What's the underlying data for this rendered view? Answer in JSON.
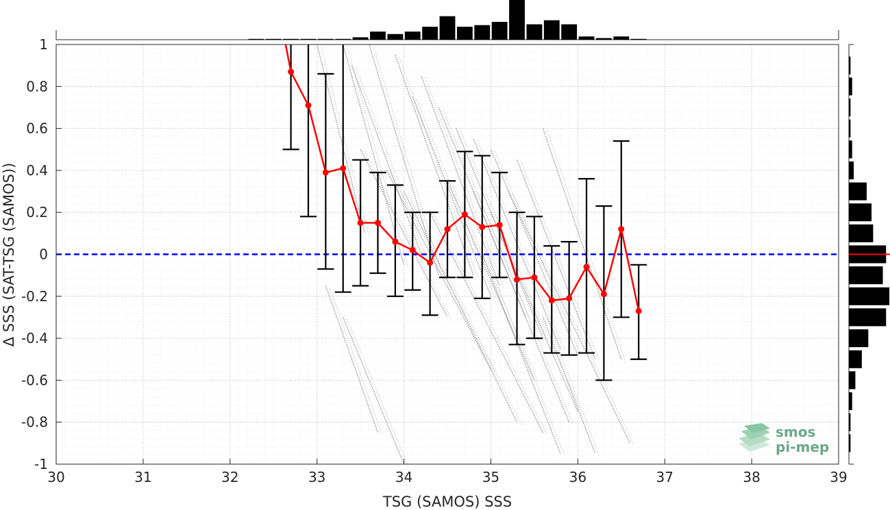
{
  "chart_data": {
    "type": "scatter",
    "xlabel": "TSG (SAMOS) SSS",
    "ylabel": "Δ SSS (SAT-TSG (SAMOS))",
    "xlim": [
      30,
      39
    ],
    "ylim": [
      -1,
      1
    ],
    "xticks": [
      "30",
      "31",
      "32",
      "33",
      "34",
      "35",
      "36",
      "37",
      "38",
      "39"
    ],
    "yticks": [
      "1",
      "0.8",
      "0.6",
      "0.4",
      "0.2",
      "0",
      "-0.2",
      "-0.4",
      "-0.6",
      "-0.8",
      "-1"
    ],
    "grid": true,
    "minor_grid": true,
    "zero_line": {
      "y": 0,
      "style": "dashed",
      "color": "#0000ff"
    },
    "binned_mean": {
      "color": "#ff0000",
      "x": [
        32.5,
        32.7,
        32.9,
        33.1,
        33.3,
        33.5,
        33.7,
        33.9,
        34.1,
        34.3,
        34.5,
        34.7,
        34.9,
        35.1,
        35.3,
        35.5,
        35.7,
        35.9,
        36.1,
        36.3,
        36.5,
        36.7
      ],
      "mean": [
        1.3,
        0.87,
        0.71,
        0.39,
        0.41,
        0.15,
        0.15,
        0.06,
        0.02,
        -0.04,
        0.12,
        0.19,
        0.13,
        0.14,
        -0.12,
        -0.11,
        -0.22,
        -0.21,
        -0.06,
        -0.19,
        0.12,
        -0.27
      ],
      "err_low": [
        null,
        0.5,
        0.18,
        -0.07,
        -0.18,
        -0.15,
        -0.09,
        -0.2,
        -0.17,
        -0.29,
        -0.11,
        -0.11,
        -0.21,
        -0.11,
        -0.43,
        -0.4,
        -0.47,
        -0.48,
        -0.47,
        -0.6,
        -0.3,
        -0.5
      ],
      "err_high": [
        null,
        1.0,
        1.0,
        0.86,
        1.0,
        0.45,
        0.39,
        0.33,
        0.2,
        0.2,
        0.35,
        0.49,
        0.47,
        0.39,
        0.2,
        0.18,
        0.04,
        0.06,
        0.36,
        0.23,
        0.54,
        -0.05
      ]
    },
    "scatter_color": "#8c8c8c",
    "scatter_streaks": [
      {
        "x": 33.0,
        "y": 1.0,
        "x2": 33.55,
        "y2": 0.1
      },
      {
        "x": 33.3,
        "y": 1.0,
        "x2": 34.0,
        "y2": -0.05
      },
      {
        "x": 33.6,
        "y": 1.0,
        "x2": 34.4,
        "y2": -0.1
      },
      {
        "x": 33.9,
        "y": 0.95,
        "x2": 34.8,
        "y2": -0.1
      },
      {
        "x": 34.2,
        "y": 0.85,
        "x2": 35.1,
        "y2": -0.15
      },
      {
        "x": 34.4,
        "y": 0.7,
        "x2": 35.4,
        "y2": -0.3
      },
      {
        "x": 34.6,
        "y": 0.6,
        "x2": 35.6,
        "y2": -0.4
      },
      {
        "x": 34.8,
        "y": 0.55,
        "x2": 35.8,
        "y2": -0.45
      },
      {
        "x": 35.0,
        "y": 0.5,
        "x2": 36.0,
        "y2": -0.48
      },
      {
        "x": 35.3,
        "y": 0.45,
        "x2": 36.2,
        "y2": -0.5
      },
      {
        "x": 35.6,
        "y": 0.6,
        "x2": 36.5,
        "y2": -0.5
      },
      {
        "x": 33.5,
        "y": 0.5,
        "x2": 34.5,
        "y2": -0.3
      },
      {
        "x": 33.8,
        "y": 0.4,
        "x2": 35.0,
        "y2": -0.55
      },
      {
        "x": 34.0,
        "y": 0.3,
        "x2": 35.3,
        "y2": -0.8
      },
      {
        "x": 34.3,
        "y": 0.2,
        "x2": 35.6,
        "y2": -0.85
      },
      {
        "x": 34.8,
        "y": 0.3,
        "x2": 35.9,
        "y2": -0.8
      },
      {
        "x": 35.2,
        "y": 0.3,
        "x2": 36.6,
        "y2": -0.9
      },
      {
        "x": 33.1,
        "y": -0.15,
        "x2": 33.7,
        "y2": -0.85
      },
      {
        "x": 33.3,
        "y": -0.3,
        "x2": 34.0,
        "y2": -1.0
      },
      {
        "x": 35.6,
        "y": -0.3,
        "x2": 36.2,
        "y2": -0.95
      },
      {
        "x": 33.4,
        "y": 0.9,
        "x2": 34.2,
        "y2": 0.0
      },
      {
        "x": 34.1,
        "y": 0.75,
        "x2": 35.0,
        "y2": -0.2
      },
      {
        "x": 34.5,
        "y": 0.35,
        "x2": 35.5,
        "y2": -0.6
      },
      {
        "x": 35.0,
        "y": 0.2,
        "x2": 36.0,
        "y2": -0.75
      },
      {
        "x": 34.9,
        "y": 0.0,
        "x2": 35.8,
        "y2": -0.95
      }
    ],
    "top_histogram": {
      "x": [
        32.3,
        32.5,
        32.7,
        32.9,
        33.1,
        33.3,
        33.5,
        33.7,
        33.9,
        34.1,
        34.3,
        34.5,
        34.7,
        34.9,
        35.1,
        35.3,
        35.5,
        35.7,
        35.9,
        36.1,
        36.3,
        36.5,
        36.7
      ],
      "counts": [
        1,
        1,
        1,
        1,
        1,
        1,
        3,
        10,
        7,
        10,
        16,
        29,
        16,
        18,
        22,
        49,
        19,
        24,
        19,
        4,
        2,
        4,
        1
      ]
    },
    "right_histogram": {
      "y": [
        0.9,
        0.8,
        0.7,
        0.6,
        0.5,
        0.4,
        0.3,
        0.2,
        0.1,
        0.0,
        -0.1,
        -0.2,
        -0.3,
        -0.4,
        -0.5,
        -0.6,
        -0.7,
        -0.8,
        -0.9
      ],
      "counts": [
        1,
        2,
        1,
        1,
        2,
        3,
        11,
        14,
        15,
        23,
        21,
        25,
        23,
        12,
        8,
        4,
        2,
        1,
        1
      ],
      "mean_marker": {
        "y": 0,
        "color": "#ff0000"
      }
    }
  },
  "logo": {
    "line1": "smos",
    "line2": "pi-mep"
  }
}
